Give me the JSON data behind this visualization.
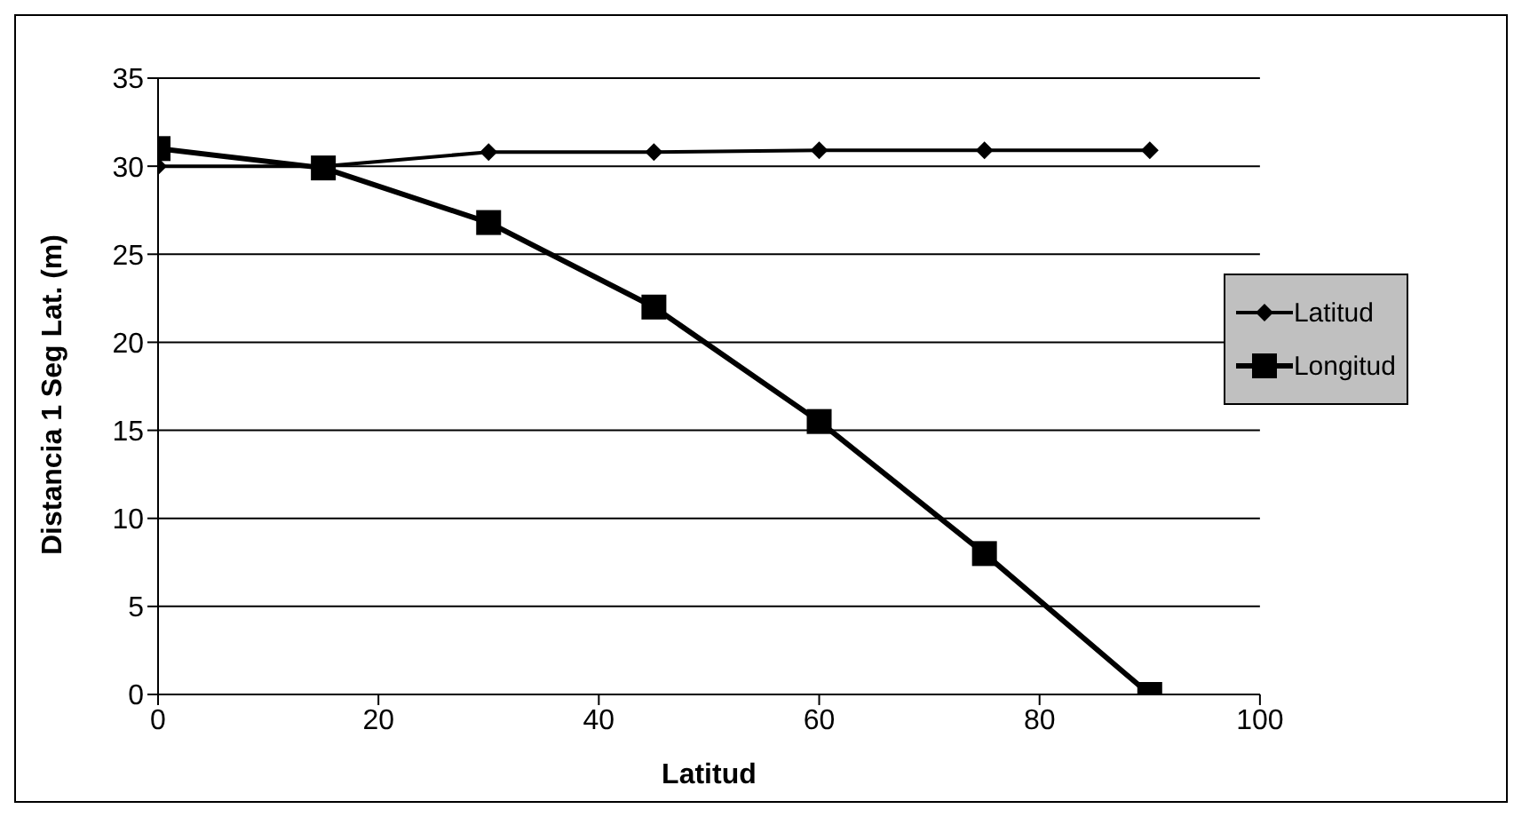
{
  "chart_data": {
    "type": "line",
    "xlabel": "Latitud",
    "ylabel": "Distancia 1 Seg Lat. (m)",
    "x": [
      0,
      15,
      30,
      45,
      60,
      75,
      90
    ],
    "series": [
      {
        "name": "Latitud",
        "color": "#000000",
        "values": [
          30.0,
          30.0,
          30.8,
          30.8,
          30.9,
          30.9,
          30.9
        ],
        "marker": "diamond"
      },
      {
        "name": "Longitud",
        "color": "#000000",
        "values": [
          31.0,
          29.9,
          26.8,
          22.0,
          15.5,
          8.0,
          0.0
        ],
        "marker": "square"
      }
    ],
    "xlim": [
      0,
      100
    ],
    "xticks": [
      0,
      20,
      40,
      60,
      80,
      100
    ],
    "ylim": [
      0,
      35
    ],
    "yticks": [
      0,
      5,
      10,
      15,
      20,
      25,
      30,
      35
    ],
    "grid": "y",
    "legend": "right",
    "line_style": "solid"
  }
}
